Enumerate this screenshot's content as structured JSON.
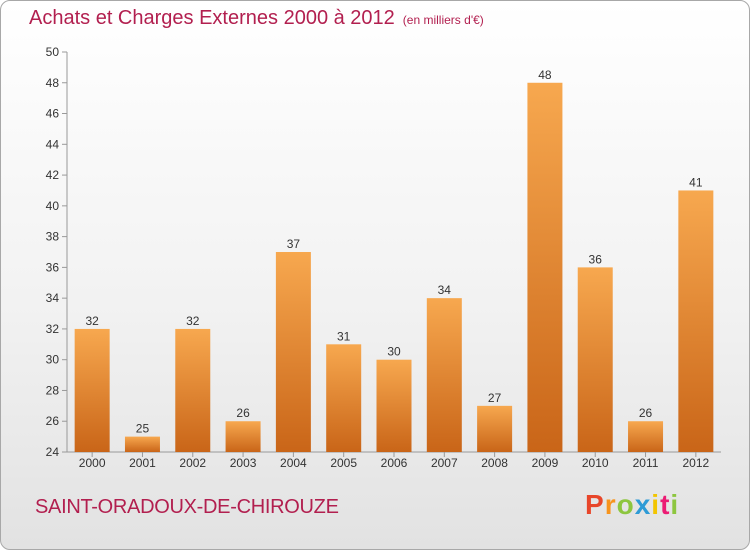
{
  "header": {
    "title": "Achats et Charges Externes 2000 à 2012",
    "unit": "(en milliers d'€)"
  },
  "commune": "SAINT-ORADOUX-DE-CHIROUZE",
  "logo": {
    "letters": [
      "P",
      "r",
      "o",
      "x",
      "i",
      "t",
      "i"
    ],
    "colors": [
      "#e8462a",
      "#f7941d",
      "#8dc63f",
      "#2e9bd6",
      "#f2c500",
      "#ec1c74",
      "#8dc63f"
    ]
  },
  "colors": {
    "title": "#b21f4f",
    "bar_top": "#f7a84f",
    "bar_bottom": "#c96518"
  },
  "chart_data": {
    "type": "bar",
    "title": "Achats et Charges Externes 2000 à 2012",
    "subtitle": "(en milliers d'€)",
    "xlabel": "",
    "ylabel": "",
    "categories": [
      "2000",
      "2001",
      "2002",
      "2003",
      "2004",
      "2005",
      "2006",
      "2007",
      "2008",
      "2009",
      "2010",
      "2011",
      "2012"
    ],
    "values": [
      32,
      25,
      32,
      26,
      37,
      31,
      30,
      34,
      27,
      48,
      36,
      26,
      41
    ],
    "ylim": [
      24,
      50
    ],
    "yticks": [
      24,
      26,
      28,
      30,
      32,
      34,
      36,
      38,
      40,
      42,
      44,
      46,
      48,
      50
    ],
    "grid": false,
    "legend": "none",
    "data_labels": true
  }
}
